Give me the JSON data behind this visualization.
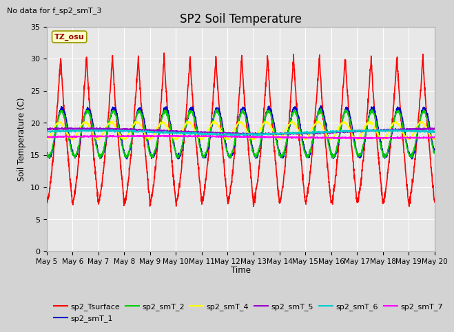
{
  "title": "SP2 Soil Temperature",
  "subtitle": "No data for f_sp2_smT_3",
  "ylabel": "Soil Temperature (C)",
  "xlabel": "Time",
  "tz_label": "TZ_osu",
  "ylim": [
    0,
    35
  ],
  "background_color": "#d3d3d3",
  "plot_bg_color": "#e8e8e8",
  "n_days": 15,
  "series": {
    "sp2_Tsurface": {
      "color": "#ff0000",
      "lw": 1.2
    },
    "sp2_smT_1": {
      "color": "#0000cc",
      "lw": 1.2
    },
    "sp2_smT_2": {
      "color": "#00cc00",
      "lw": 1.2
    },
    "sp2_smT_4": {
      "color": "#ffff00",
      "lw": 1.2
    },
    "sp2_smT_5": {
      "color": "#9900cc",
      "lw": 1.2
    },
    "sp2_smT_6": {
      "color": "#00cccc",
      "lw": 1.2
    },
    "sp2_smT_7": {
      "color": "#ff00ff",
      "lw": 1.2
    }
  },
  "x_tick_labels": [
    "May 5",
    "May 6",
    "May 7",
    "May 8",
    "May 9",
    "May 10",
    "May 11",
    "May 12",
    "May 13",
    "May 14",
    "May 15",
    "May 16",
    "May 17",
    "May 18",
    "May 19",
    "May 20"
  ],
  "yticks": [
    0,
    5,
    10,
    15,
    20,
    25,
    30,
    35
  ]
}
